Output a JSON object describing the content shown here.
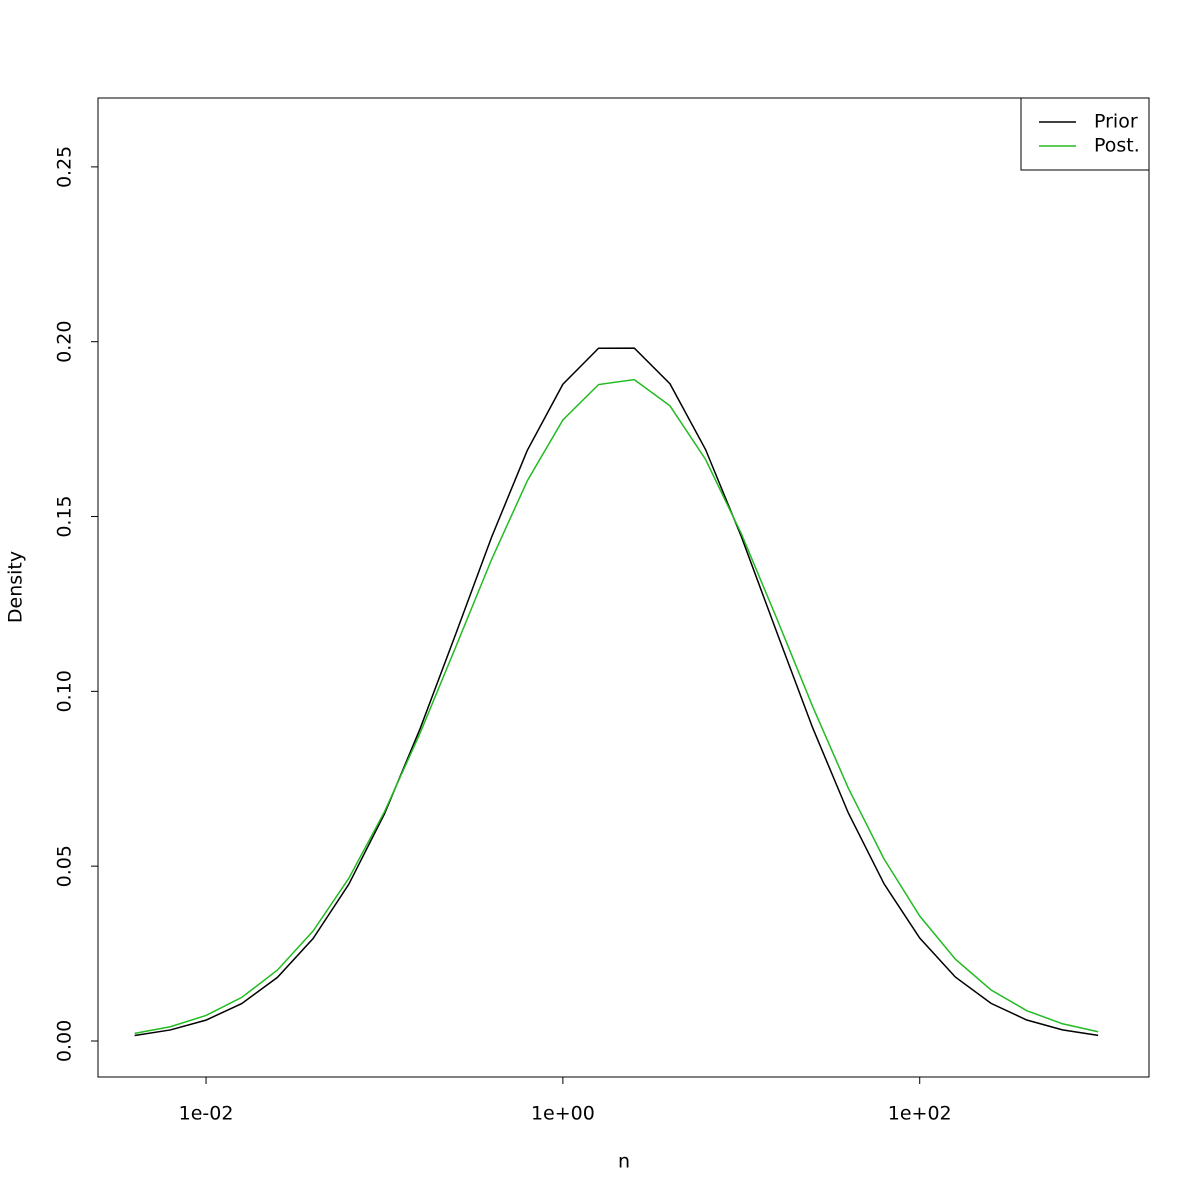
{
  "chart_data": {
    "type": "line",
    "x_label": "n",
    "y_label": "Density",
    "xlog": true,
    "grid": false,
    "legend": "topright",
    "x": [
      0.00398,
      0.00631,
      0.01,
      0.01585,
      0.02512,
      0.03981,
      0.0631,
      0.1,
      0.1585,
      0.2512,
      0.3981,
      0.631,
      1,
      1.585,
      2.512,
      3.981,
      6.31,
      10,
      15.85,
      25.12,
      39.81,
      63.1,
      100,
      158.5,
      251.2,
      398.1,
      631,
      1000
    ],
    "series": [
      {
        "name": "Prior",
        "color": "#000000",
        "values": [
          0.00158,
          0.00316,
          0.00597,
          0.01069,
          0.01819,
          0.02931,
          0.04482,
          0.06495,
          0.08936,
          0.11647,
          0.14404,
          0.16887,
          0.18784,
          0.19813,
          0.19817,
          0.18798,
          0.16913,
          0.14428,
          0.11675,
          0.08956,
          0.06521,
          0.04496,
          0.02944,
          0.01827,
          0.01075,
          0.006,
          0.00318,
          0.0016
        ]
      },
      {
        "name": "Post.",
        "color": "#22bb22",
        "values": [
          0.00217,
          0.00407,
          0.0073,
          0.01246,
          0.02028,
          0.03145,
          0.04652,
          0.06554,
          0.0881,
          0.11276,
          0.13767,
          0.16015,
          0.17762,
          0.18775,
          0.18916,
          0.18166,
          0.16631,
          0.14508,
          0.12069,
          0.09565,
          0.0723,
          0.05206,
          0.03574,
          0.02339,
          0.01459,
          0.00867,
          0.00492,
          0.00265
        ]
      }
    ],
    "xlim": [
      0.00248,
      1928
    ],
    "xticks": [
      {
        "value": 0.01,
        "label": "1e-02"
      },
      {
        "value": 1,
        "label": "1e+00"
      },
      {
        "value": 100,
        "label": "1e+02"
      }
    ],
    "ylim": [
      -0.0103,
      0.2697
    ],
    "yticks": [
      {
        "value": 0,
        "label": "0.00"
      },
      0.05,
      {
        "value": 0.1,
        "label": "0.10"
      },
      0.15,
      {
        "value": 0.2,
        "label": "0.20"
      },
      0.25
    ]
  }
}
